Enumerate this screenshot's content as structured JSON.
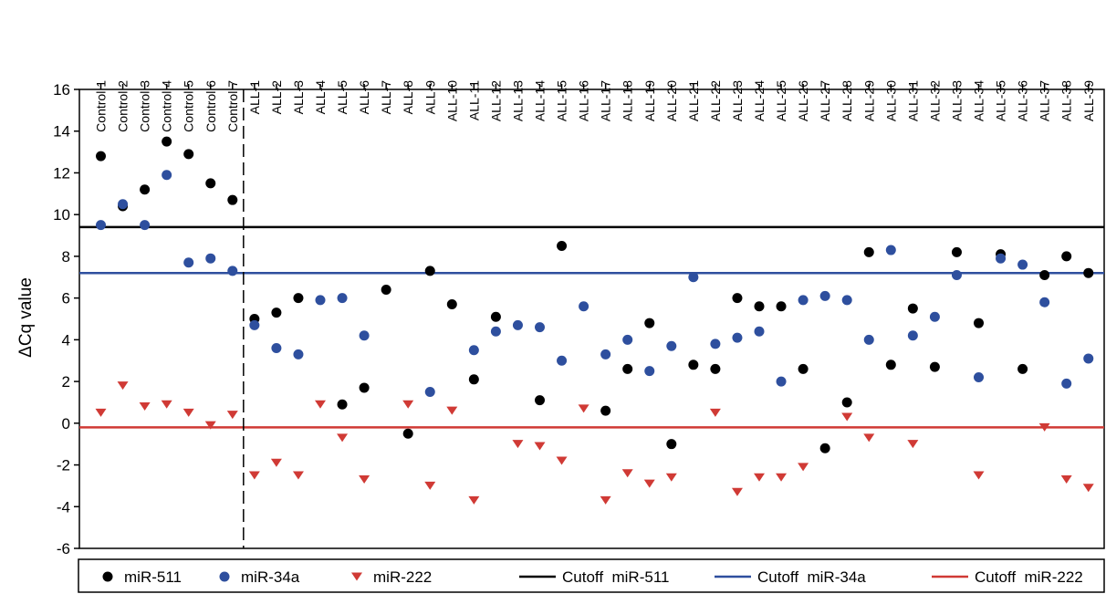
{
  "chart_data": {
    "type": "scatter",
    "title": "",
    "xlabel": "",
    "ylabel": "ΔCq value",
    "ylim": [
      -6,
      16
    ],
    "yticks": [
      -6,
      -4,
      -2,
      0,
      2,
      4,
      6,
      8,
      10,
      12,
      14,
      16
    ],
    "grid": false,
    "legend_position": "bottom",
    "categories": [
      "Control 1",
      "Control 2",
      "Control 3",
      "Control 4",
      "Control 5",
      "Control 6",
      "Control 7",
      "ALL-1",
      "ALL-2",
      "ALL-3",
      "ALL-4",
      "ALL-5",
      "ALL-6",
      "ALL-7",
      "ALL-8",
      "ALL-9",
      "ALL-10",
      "ALL-11",
      "ALL-12",
      "ALL-13",
      "ALL-14",
      "ALL-15",
      "ALL-16",
      "ALL-17",
      "ALL-18",
      "ALL-19",
      "ALL-20",
      "ALL-21",
      "ALL-22",
      "ALL-23",
      "ALL-24",
      "ALL-25",
      "ALL-26",
      "ALL-27",
      "ALL-28",
      "ALL-29",
      "ALL-30",
      "ALL-31",
      "ALL-32",
      "ALL-33",
      "ALL-34",
      "ALL-35",
      "ALL-36",
      "ALL-37",
      "ALL-38",
      "ALL-39"
    ],
    "series": [
      {
        "name": "miR-511",
        "marker": "circle",
        "color": "#000000",
        "values": [
          12.8,
          10.4,
          11.2,
          13.5,
          12.9,
          11.5,
          10.7,
          5.0,
          5.3,
          6.0,
          null,
          0.9,
          1.7,
          6.4,
          -0.5,
          7.3,
          5.7,
          2.1,
          5.1,
          null,
          1.1,
          8.5,
          null,
          0.6,
          2.6,
          4.8,
          -1.0,
          2.8,
          2.6,
          6.0,
          5.6,
          5.6,
          2.6,
          -1.2,
          1.0,
          8.2,
          2.8,
          5.5,
          2.7,
          8.2,
          4.8,
          8.1,
          2.6,
          7.1,
          8.0,
          7.2
        ]
      },
      {
        "name": "miR-34a",
        "marker": "circle",
        "color": "#2e4f9e",
        "values": [
          9.5,
          10.5,
          9.5,
          11.9,
          7.7,
          7.9,
          7.3,
          4.7,
          3.6,
          3.3,
          5.9,
          6.0,
          4.2,
          null,
          null,
          1.5,
          null,
          3.5,
          4.4,
          4.7,
          4.6,
          3.0,
          5.6,
          3.3,
          4.0,
          2.5,
          3.7,
          7.0,
          3.8,
          4.1,
          4.4,
          2.0,
          5.9,
          6.1,
          5.9,
          4.0,
          8.3,
          4.2,
          5.1,
          7.1,
          2.2,
          7.9,
          7.6,
          5.8,
          1.9,
          3.1
        ]
      },
      {
        "name": "miR-222",
        "marker": "triangle-down",
        "color": "#d03a35",
        "values": [
          0.5,
          1.8,
          0.8,
          0.9,
          0.5,
          -0.1,
          0.4,
          -2.5,
          -1.9,
          -2.5,
          0.9,
          -0.7,
          -2.7,
          null,
          0.9,
          -3.0,
          0.6,
          -3.7,
          null,
          -1.0,
          -1.1,
          -1.8,
          0.7,
          -3.7,
          -2.4,
          -2.9,
          -2.6,
          null,
          0.5,
          -3.3,
          -2.6,
          -2.6,
          -2.1,
          null,
          0.3,
          -0.7,
          null,
          -1.0,
          null,
          null,
          -2.5,
          null,
          null,
          -0.2,
          -2.7,
          -3.1
        ]
      }
    ],
    "cutoffs": [
      {
        "name": "Cutoff  miR-511",
        "value": 9.4,
        "color": "#000000"
      },
      {
        "name": "Cutoff  miR-34a",
        "value": 7.2,
        "color": "#2e4f9e"
      },
      {
        "name": "Cutoff  miR-222",
        "value": -0.2,
        "color": "#d03a35"
      }
    ],
    "separator_after_index": 6
  }
}
